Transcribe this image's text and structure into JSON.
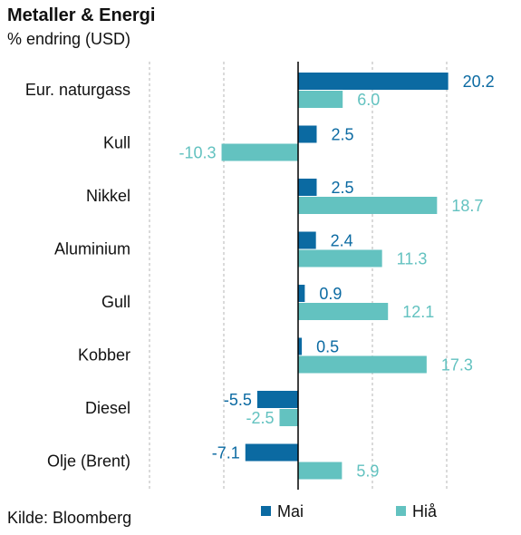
{
  "title": "Metaller & Energi",
  "subtitle": "% endring (USD)",
  "source": "Kilde: Bloomberg",
  "colors": {
    "Mai": "#0b6aa2",
    "Hiå": "#63c2c0"
  },
  "chart_data": {
    "type": "bar",
    "orientation": "horizontal",
    "categories": [
      "Eur. naturgass",
      "Kull",
      "Nikkel",
      "Aluminium",
      "Gull",
      "Kobber",
      "Diesel",
      "Olje (Brent)"
    ],
    "series": [
      {
        "name": "Mai",
        "values": [
          20.2,
          2.5,
          2.5,
          2.4,
          0.9,
          0.5,
          -5.5,
          -7.1
        ]
      },
      {
        "name": "Hiå",
        "values": [
          6.0,
          -10.3,
          18.7,
          11.3,
          12.1,
          17.3,
          -2.5,
          5.9
        ]
      }
    ],
    "value_labels": {
      "Mai": [
        "20.2",
        "2.5",
        "2.5",
        "2.4",
        "0.9",
        "0.5",
        "-5.5",
        "-7.1"
      ],
      "Hiå": [
        "6.0",
        "-10.3",
        "18.7",
        "11.3",
        "12.1",
        "17.3",
        "-2.5",
        "5.9"
      ]
    },
    "xlim": [
      -20,
      20
    ],
    "gridlines": [
      -20,
      -10,
      10,
      20
    ],
    "grid": true,
    "legend": "bottom"
  }
}
